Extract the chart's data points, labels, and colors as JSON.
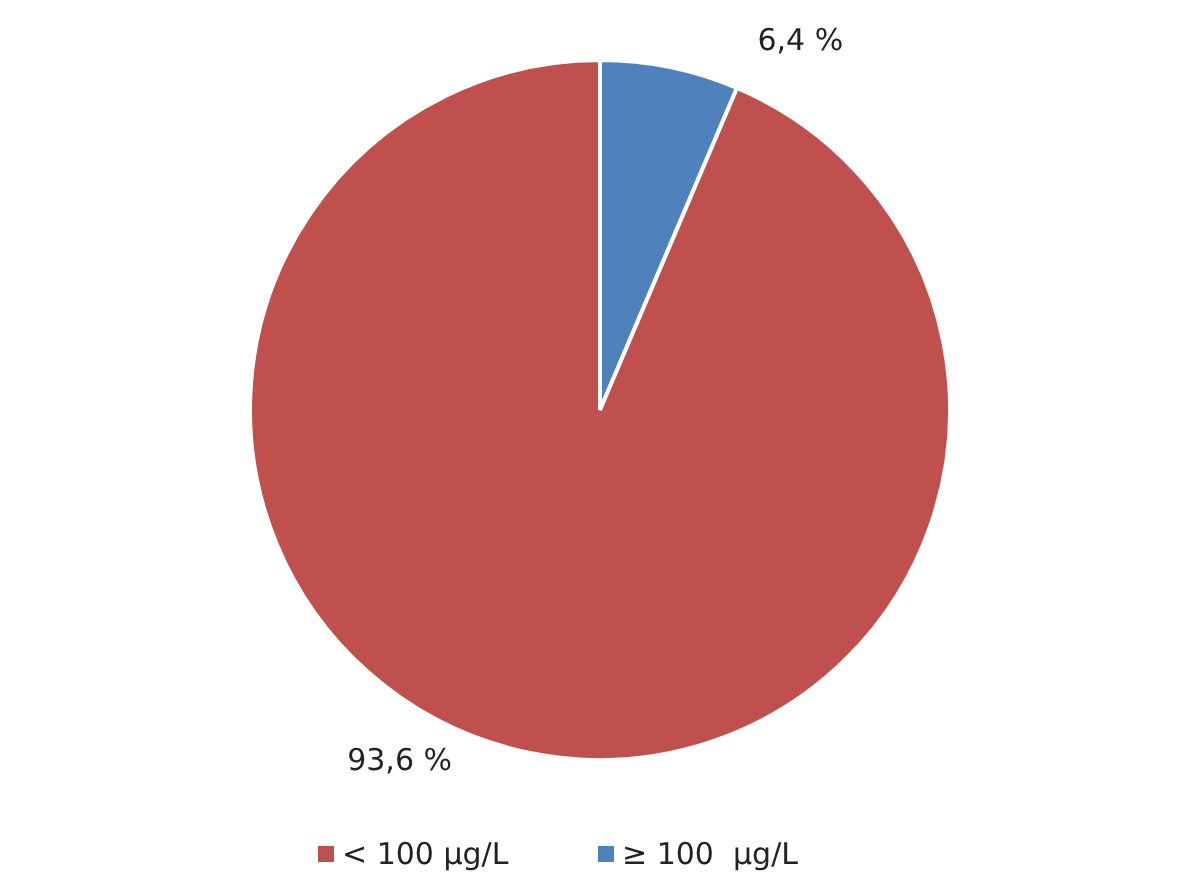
{
  "chart_data": {
    "type": "pie",
    "categories": [
      "< 100 µg/L",
      "≥ 100  µg/L"
    ],
    "values": [
      93.6,
      6.4
    ],
    "colors": [
      "#c0504d",
      "#4f81bd"
    ],
    "value_labels": [
      "93,6 %",
      "6,4 %"
    ],
    "legend": "bottom"
  }
}
